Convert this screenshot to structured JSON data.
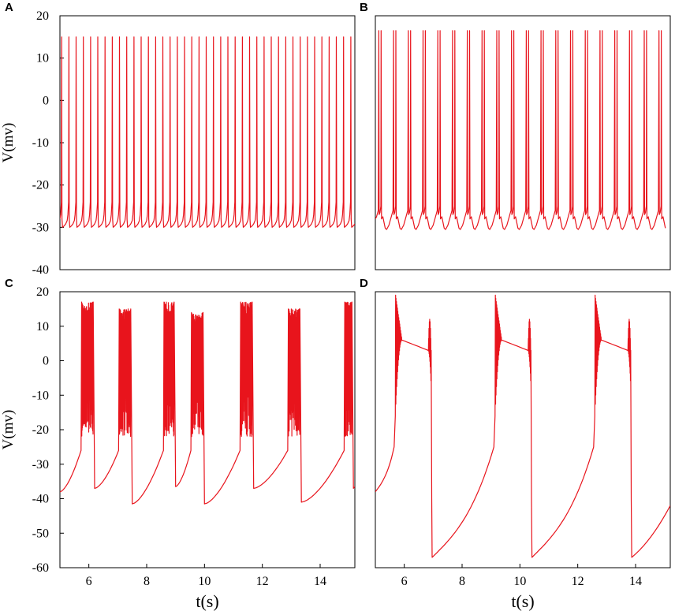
{
  "colors": {
    "trace": "#e8141c",
    "axis": "#000000",
    "background": "#ffffff"
  },
  "chart_data": [
    {
      "panel": "A",
      "type": "line",
      "xlabel": "",
      "ylabel": "V(mv)",
      "xlim": [
        5,
        15.2
      ],
      "ylim": [
        -40,
        20
      ],
      "y_ticks": [
        -40,
        -30,
        -20,
        -10,
        0,
        10,
        20
      ],
      "x_ticks": [],
      "pattern": "tonic_spiking",
      "spike_period_s": 0.25,
      "first_spike_s": 5.06,
      "spike_peak_mv": 15,
      "trough_mv": -30,
      "pre_spike_mv": -27,
      "grid": false,
      "legend": "none"
    },
    {
      "panel": "B",
      "type": "line",
      "xlabel": "",
      "ylabel": "",
      "xlim": [
        5,
        15.2
      ],
      "ylim": [
        -40,
        20
      ],
      "y_ticks": [],
      "x_ticks": [],
      "pattern": "doublet_bursting",
      "burst_period_s": 0.51,
      "first_burst_s": 5.12,
      "spikes_per_burst": 2,
      "intra_burst_interval_s": 0.08,
      "spike_peak_mv": 16.5,
      "trough_mv": -30.5,
      "plateau_mv": -26,
      "grid": false,
      "legend": "none"
    },
    {
      "panel": "C",
      "type": "line",
      "xlabel": "t(s)",
      "ylabel": "V(mv)",
      "xlim": [
        5,
        15.2
      ],
      "ylim": [
        -60,
        20
      ],
      "y_ticks": [
        -60,
        -50,
        -40,
        -30,
        -20,
        -10,
        0,
        10,
        20
      ],
      "x_ticks": [
        6,
        8,
        10,
        12,
        14
      ],
      "pattern": "chaotic_bursting",
      "bursts": [
        {
          "onset_s": 5.75,
          "end_s": 6.15,
          "peak_mv": 17,
          "after_mv": -37
        },
        {
          "onset_s": 7.05,
          "end_s": 7.45,
          "peak_mv": 15,
          "after_mv": -41.5
        },
        {
          "onset_s": 8.6,
          "end_s": 8.95,
          "peak_mv": 17,
          "after_mv": -36.5
        },
        {
          "onset_s": 9.55,
          "end_s": 9.95,
          "peak_mv": 14,
          "after_mv": -41.5
        },
        {
          "onset_s": 11.25,
          "end_s": 11.65,
          "peak_mv": 17,
          "after_mv": -37
        },
        {
          "onset_s": 12.9,
          "end_s": 13.3,
          "peak_mv": 15,
          "after_mv": -41
        },
        {
          "onset_s": 14.85,
          "end_s": 15.1,
          "peak_mv": 17,
          "after_mv": -37
        }
      ],
      "start_mv": -38,
      "grid": false,
      "legend": "none"
    },
    {
      "panel": "D",
      "type": "line",
      "xlabel": "t(s)",
      "ylabel": "",
      "xlim": [
        5,
        15.2
      ],
      "ylim": [
        -60,
        20
      ],
      "y_ticks": [],
      "x_ticks": [
        6,
        8,
        10,
        12,
        14
      ],
      "pattern": "plateau_bursting",
      "bursts": [
        {
          "onset_s": 5.7,
          "end_s": 6.95,
          "peak_mv": 19,
          "plateau_start_mv": 6,
          "plateau_end_mv": 3,
          "after_mv": -57
        },
        {
          "onset_s": 9.15,
          "end_s": 10.4,
          "peak_mv": 19,
          "plateau_start_mv": 6,
          "plateau_end_mv": 3,
          "after_mv": -57
        },
        {
          "onset_s": 12.6,
          "end_s": 13.85,
          "peak_mv": 19,
          "plateau_start_mv": 6,
          "plateau_end_mv": 3,
          "after_mv": -57
        }
      ],
      "start_mv": -38,
      "end_mv": -42,
      "grid": false,
      "legend": "none"
    }
  ]
}
